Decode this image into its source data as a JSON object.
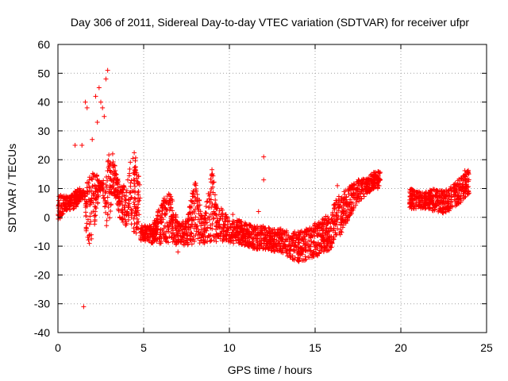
{
  "chart_data": {
    "type": "scatter",
    "title": "Day 306 of 2011, Sidereal Day-to-day VTEC variation (SDTVAR) for receiver ufpr",
    "xlabel": "GPS time / hours",
    "ylabel": "SDTVAR / TECUs",
    "xlim": [
      0,
      25
    ],
    "ylim": [
      -40,
      60
    ],
    "x_ticks": [
      0,
      5,
      10,
      15,
      20,
      25
    ],
    "y_ticks": [
      -40,
      -30,
      -20,
      -10,
      0,
      10,
      20,
      30,
      40,
      50,
      60
    ],
    "x_tick_labels": [
      "0",
      "5",
      "10",
      "15",
      "20",
      "25"
    ],
    "y_tick_labels": [
      "-40",
      "-30",
      "-20",
      "-10",
      "0",
      "10",
      "20",
      "30",
      "40",
      "50",
      "60"
    ],
    "grid": true,
    "marker": "+",
    "color": "#ff0000",
    "series": [
      {
        "name": "SDTVAR",
        "bands": [
          {
            "x": [
              0.0,
              0.2,
              0.4,
              0.6,
              0.8,
              1.0,
              1.2,
              1.4,
              1.6
            ],
            "upper": [
              7,
              8,
              8,
              7,
              8,
              9,
              10,
              10,
              9
            ],
            "lower": [
              -2,
              0,
              2,
              3,
              2,
              3,
              5,
              6,
              6
            ]
          },
          {
            "x": [
              1.6,
              1.8,
              2.0,
              2.2,
              2.4,
              2.6,
              2.8,
              3.0,
              3.2,
              3.4,
              3.6,
              3.8,
              4.0,
              4.2,
              4.4,
              4.6,
              4.8
            ],
            "upper": [
              12,
              15,
              20,
              16,
              13,
              12,
              16,
              26,
              22,
              16,
              11,
              12,
              10,
              20,
              23,
              21,
              10
            ],
            "lower": [
              -4,
              -10,
              -8,
              0,
              8,
              10,
              -6,
              -2,
              9,
              6,
              0,
              -2,
              -3,
              -1,
              -5,
              -6,
              -8
            ]
          },
          {
            "x": [
              4.8,
              5.5,
              6.0,
              6.5,
              7.0,
              7.5,
              8.0,
              8.5,
              9.0,
              9.3,
              9.6,
              10.0,
              10.5,
              11.0,
              11.5,
              12.0,
              12.5,
              13.0,
              13.5,
              14.0,
              14.5,
              15.0,
              15.5,
              16.0
            ],
            "upper": [
              -2,
              -3,
              5,
              10,
              -2,
              -1,
              13,
              0,
              18,
              4,
              3,
              -1,
              -1,
              -2,
              -3,
              -3,
              -4,
              -4,
              -5,
              -5,
              -4,
              -2,
              0,
              2
            ],
            "lower": [
              -8,
              -9,
              -9,
              -9,
              -10,
              -10,
              -9,
              -9,
              -9,
              -9,
              -9,
              -9,
              -9,
              -10,
              -11,
              -11,
              -12,
              -12,
              -14,
              -16,
              -15,
              -14,
              -12,
              -11
            ]
          },
          {
            "x": [
              16.0,
              16.5,
              17.0,
              17.5,
              18.0,
              18.5,
              18.8
            ],
            "upper": [
              5,
              8,
              11,
              13,
              14,
              16,
              16
            ],
            "lower": [
              -8,
              -6,
              0,
              5,
              8,
              10,
              10
            ]
          },
          {
            "x": [
              20.5,
              21.0,
              21.5,
              22.0,
              22.5,
              23.0,
              23.5,
              24.0
            ],
            "upper": [
              10,
              9,
              9,
              10,
              9,
              11,
              14,
              19
            ],
            "lower": [
              3,
              3,
              3,
              2,
              1,
              3,
              5,
              8
            ]
          }
        ],
        "spikes": [
          {
            "x": 2.2,
            "y": 42
          },
          {
            "x": 2.4,
            "y": 45
          },
          {
            "x": 2.5,
            "y": 40
          },
          {
            "x": 2.6,
            "y": 38
          },
          {
            "x": 2.8,
            "y": 48
          },
          {
            "x": 2.9,
            "y": 51
          },
          {
            "x": 2.7,
            "y": 35
          },
          {
            "x": 1.6,
            "y": 40
          },
          {
            "x": 1.7,
            "y": 38
          },
          {
            "x": 2.3,
            "y": 33
          },
          {
            "x": 2.0,
            "y": 27
          },
          {
            "x": 1.5,
            "y": -31
          },
          {
            "x": 12.0,
            "y": 21
          },
          {
            "x": 12.0,
            "y": 13
          },
          {
            "x": 11.7,
            "y": 2
          },
          {
            "x": 1.0,
            "y": 25
          },
          {
            "x": 1.4,
            "y": 25
          },
          {
            "x": 16.3,
            "y": 11
          },
          {
            "x": 7.0,
            "y": -12
          },
          {
            "x": 10.2,
            "y": 1
          }
        ]
      }
    ]
  }
}
